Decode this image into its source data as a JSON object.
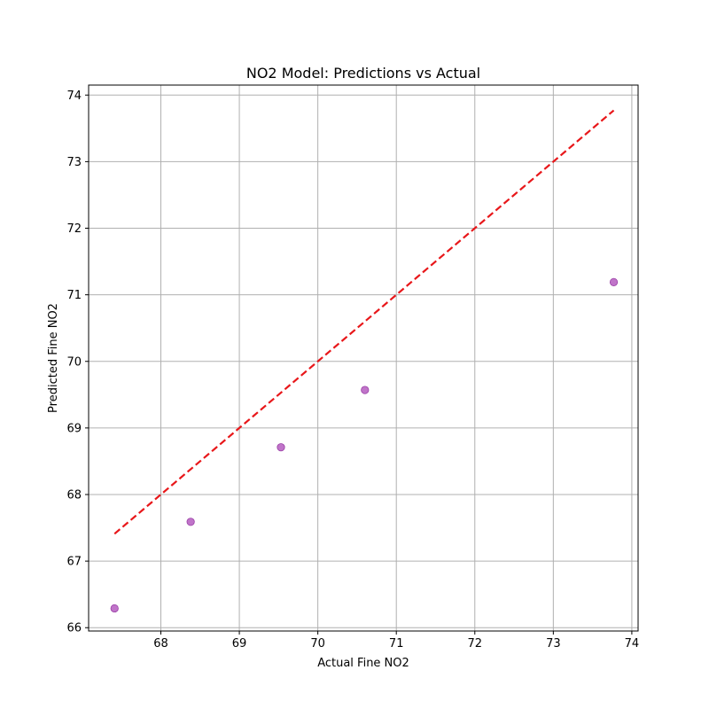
{
  "chart_data": {
    "type": "scatter",
    "title": "NO2 Model: Predictions vs Actual",
    "xlabel": "Actual Fine NO2",
    "ylabel": "Predicted Fine NO2",
    "xlim": [
      67.08,
      74.08
    ],
    "ylim": [
      65.95,
      74.15
    ],
    "xticks": [
      68,
      69,
      70,
      71,
      72,
      73,
      74
    ],
    "yticks": [
      66,
      67,
      68,
      69,
      70,
      71,
      72,
      73,
      74
    ],
    "grid": true,
    "series": [
      {
        "type": "scatter",
        "color": "#b55cc0",
        "points": [
          {
            "x": 67.41,
            "y": 66.29
          },
          {
            "x": 68.38,
            "y": 67.59
          },
          {
            "x": 69.53,
            "y": 68.71
          },
          {
            "x": 70.6,
            "y": 69.57
          },
          {
            "x": 73.77,
            "y": 71.19
          }
        ]
      },
      {
        "type": "reference-line",
        "style": "dashed",
        "color": "#e8171a",
        "points": [
          {
            "x": 67.41,
            "y": 67.41
          },
          {
            "x": 73.77,
            "y": 73.77
          }
        ]
      }
    ]
  }
}
